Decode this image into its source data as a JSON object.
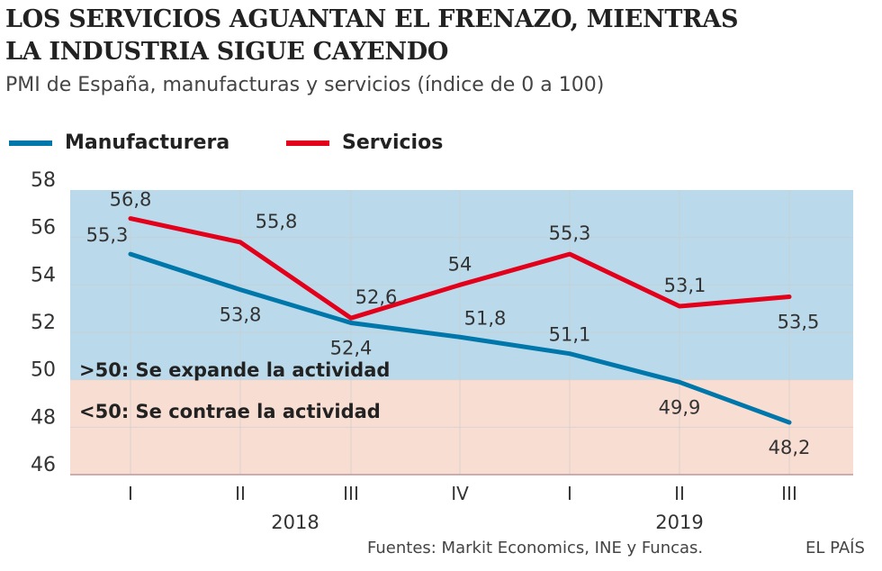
{
  "title_line1": "LOS  SERVICIOS AGUANTAN EL FRENAZO, MIENTRAS",
  "title_line2": "LA INDUSTRIA SIGUE CAYENDO",
  "subtitle": "PMI de España, manufacturas y servicios (índice de 0 a 100)",
  "source": "Fuentes: Markit Economics, INE y Funcas.",
  "brand": "EL PAÍS",
  "chart_data": {
    "type": "line",
    "categories": [
      "I",
      "II",
      "III",
      "IV",
      "I",
      "II",
      "III"
    ],
    "years": [
      {
        "label": "2018",
        "span": [
          0,
          3
        ]
      },
      {
        "label": "2019",
        "span": [
          4,
          6
        ]
      }
    ],
    "ylim": [
      46,
      58
    ],
    "yticks": [
      46,
      48,
      50,
      52,
      54,
      56,
      58
    ],
    "grid": true,
    "legend": "top-left",
    "zones": [
      {
        "label": ">50: Se expande la actividad",
        "from": 50,
        "to": 58,
        "color": "#bad9ea"
      },
      {
        "label": "<50: Se contrae la actividad",
        "from": 46,
        "to": 50,
        "color": "#f8ddd2"
      }
    ],
    "series": [
      {
        "name": "Manufacturera",
        "color": "#0077aa",
        "values": [
          55.3,
          53.8,
          52.4,
          51.8,
          51.1,
          49.9,
          48.2
        ],
        "labels": [
          "55,3",
          "53,8",
          "52,4",
          "51,8",
          "51,1",
          "49,9",
          "48,2"
        ]
      },
      {
        "name": "Servicios",
        "color": "#e2001a",
        "values": [
          56.8,
          55.8,
          52.6,
          54,
          55.3,
          53.1,
          53.5
        ],
        "labels": [
          "56,8",
          "55,8",
          "52,6",
          "54",
          "55,3",
          "53,1",
          "53,5"
        ]
      }
    ]
  }
}
